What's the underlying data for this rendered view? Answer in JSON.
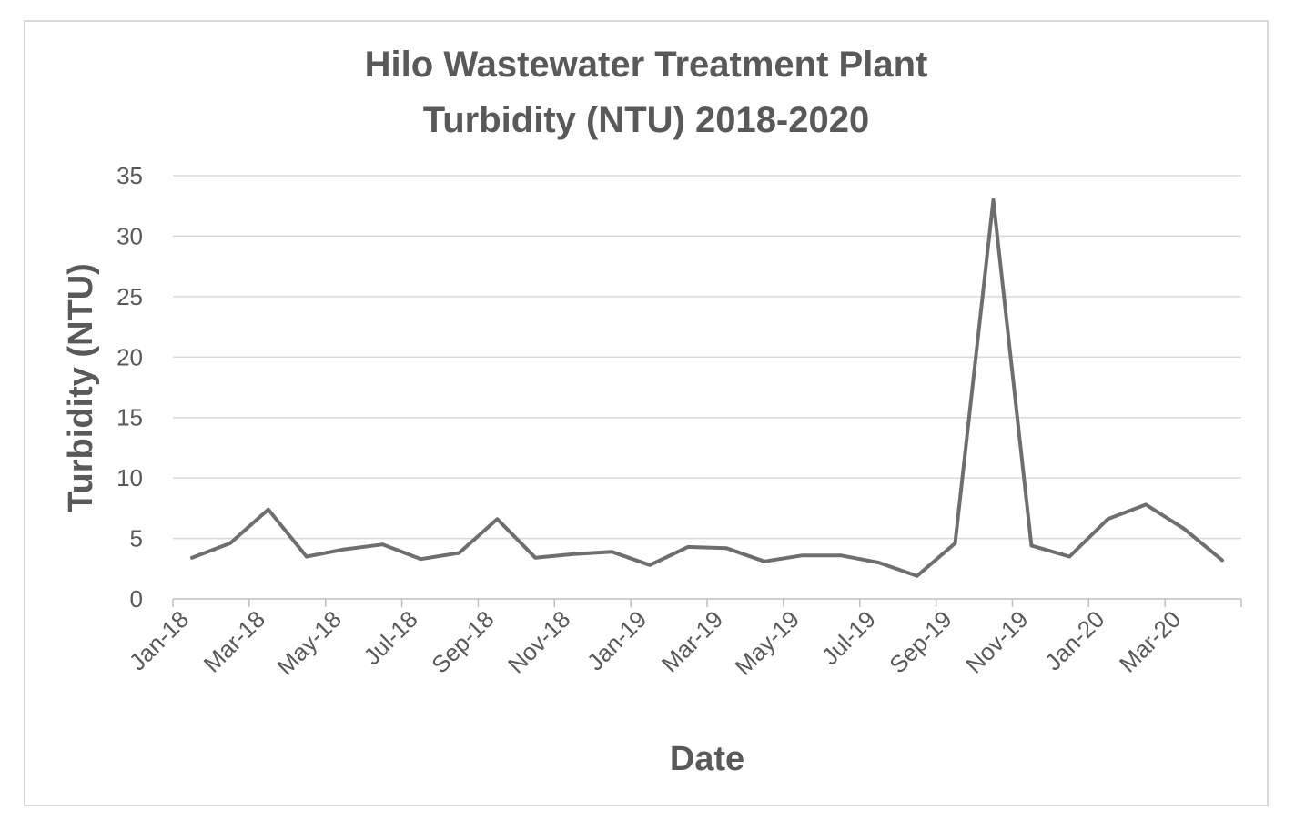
{
  "chart_data": {
    "type": "line",
    "title_lines": [
      "Hilo Wastewater Treatment Plant",
      "Turbidity (NTU) 2018-2020"
    ],
    "xlabel": "Date",
    "ylabel": "Turbidity (NTU)",
    "ylim": [
      0,
      35
    ],
    "y_ticks": [
      0,
      5,
      10,
      15,
      20,
      25,
      30,
      35
    ],
    "grid": true,
    "legend": "none",
    "x_tick_labels": [
      "Jan-18",
      "Mar-18",
      "May-18",
      "Jul-18",
      "Sep-18",
      "Nov-18",
      "Jan-19",
      "Mar-19",
      "May-19",
      "Jul-19",
      "Sep-19",
      "Nov-19",
      "Jan-20",
      "Mar-20"
    ],
    "x": [
      "Jan-18",
      "Feb-18",
      "Mar-18",
      "Apr-18",
      "May-18",
      "Jun-18",
      "Jul-18",
      "Aug-18",
      "Sep-18",
      "Oct-18",
      "Nov-18",
      "Dec-18",
      "Jan-19",
      "Feb-19",
      "Mar-19",
      "Apr-19",
      "May-19",
      "Jun-19",
      "Jul-19",
      "Aug-19",
      "Sep-19",
      "Oct-19",
      "Nov-19",
      "Dec-19",
      "Jan-20",
      "Feb-20",
      "Mar-20",
      "Apr-20"
    ],
    "series": [
      {
        "values": [
          3.4,
          4.6,
          7.4,
          3.5,
          4.1,
          4.5,
          3.3,
          3.8,
          6.6,
          3.4,
          3.7,
          3.9,
          2.8,
          4.3,
          4.2,
          3.1,
          3.6,
          3.6,
          3.0,
          1.9,
          4.6,
          33.0,
          4.4,
          3.5,
          6.6,
          7.8,
          5.8,
          3.2
        ],
        "color": "#6e6e6e"
      }
    ]
  }
}
